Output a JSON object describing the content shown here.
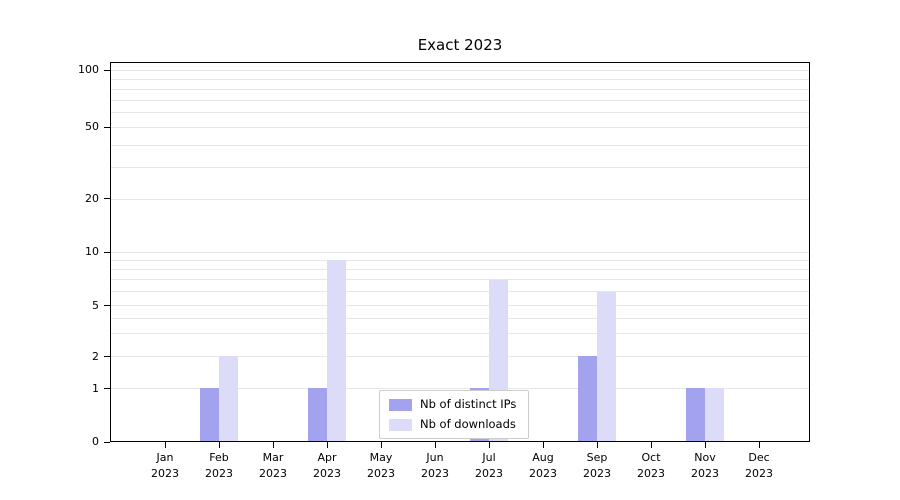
{
  "title": "Exact 2023",
  "chart_data": {
    "type": "bar",
    "title": "Exact 2023",
    "categories": [
      "Jan 2023",
      "Feb 2023",
      "Mar 2023",
      "Apr 2023",
      "May 2023",
      "Jun 2023",
      "Jul 2023",
      "Aug 2023",
      "Sep 2023",
      "Oct 2023",
      "Nov 2023",
      "Dec 2023"
    ],
    "series": [
      {
        "name": "Nb of distinct IPs",
        "color": "#a2a2ee",
        "values": [
          0,
          1,
          0,
          1,
          0,
          0,
          1,
          0,
          2,
          0,
          1,
          0
        ]
      },
      {
        "name": "Nb of downloads",
        "color": "#dcdcf8",
        "values": [
          0,
          2,
          0,
          9,
          0,
          0,
          7,
          0,
          6,
          0,
          1,
          0
        ]
      }
    ],
    "yticks": [
      0,
      1,
      2,
      5,
      10,
      20,
      50,
      100
    ],
    "ylim": [
      0,
      100
    ],
    "scale": "symlog",
    "grid": true,
    "legend_position": "lower center",
    "axis_color": "#000000",
    "grid_color": "#e6e6e6"
  }
}
